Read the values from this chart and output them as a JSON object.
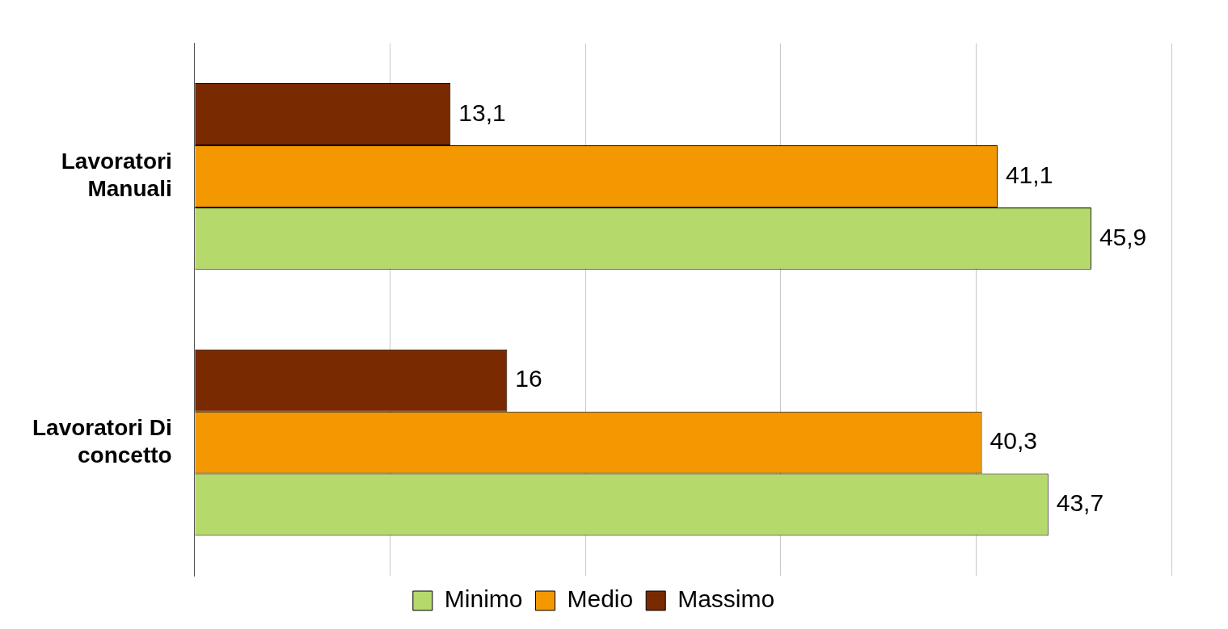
{
  "chart_data": {
    "type": "bar",
    "orientation": "horizontal",
    "categories": [
      "Lavoratori Manuali",
      "Lavoratori Di concetto"
    ],
    "series": [
      {
        "name": "Massimo",
        "color": "#7a2a00",
        "values": [
          13.1,
          16
        ],
        "value_labels": [
          "13,1",
          "16"
        ]
      },
      {
        "name": "Medio",
        "color": "#f39800",
        "values": [
          41.1,
          40.3
        ],
        "value_labels": [
          "41,1",
          "40,3"
        ]
      },
      {
        "name": "Minimo",
        "color": "#b5d96a",
        "values": [
          45.9,
          43.7
        ],
        "value_labels": [
          "45,9",
          "43,7"
        ]
      }
    ],
    "xlim": [
      0,
      50
    ],
    "xticks": [
      {
        "value": 0,
        "label": null
      },
      {
        "value": 10,
        "label": null
      },
      {
        "value": 20,
        "label": null
      },
      {
        "value": 30,
        "label": null
      },
      {
        "value": 40,
        "label": null
      },
      {
        "value": 50,
        "label": null
      }
    ],
    "grid": "x",
    "legend": "bottom",
    "tick_labels": "y"
  }
}
